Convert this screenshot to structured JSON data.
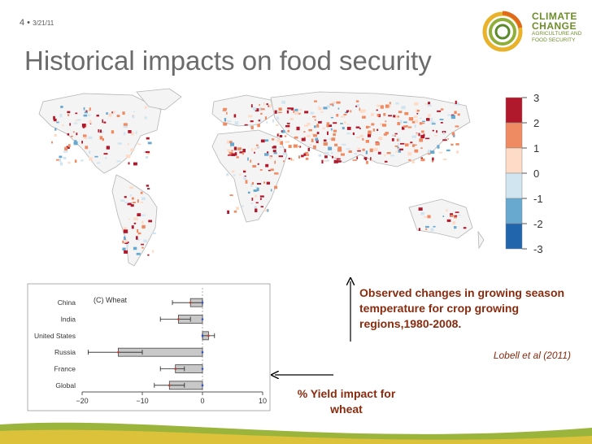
{
  "slide": {
    "number": "4",
    "date": "3/21/11",
    "title": "Historical impacts on food security"
  },
  "logo": {
    "line1": "CLIMATE",
    "line2": "CHANGE",
    "line3": "AGRICULTURE AND",
    "line4": "FOOD SECURITY",
    "color": "#6d8e2a"
  },
  "annotations": {
    "temperature": "Observed changes in growing season temperature for crop growing regions,1980-2008.",
    "citation": "Lobell et al (2011)",
    "yield": "% Yield impact for wheat"
  },
  "chart_data": [
    {
      "type": "heatmap",
      "description_colors": [
        "#2166ac",
        "#67a9cf",
        "#d1e5f0",
        "#fddbc7",
        "#ef8a62",
        "#b2182b"
      ],
      "legend": {
        "ticks": [
          "3",
          "2",
          "1",
          "0",
          "-1",
          "-2",
          "-3"
        ],
        "colors": [
          "#b2182b",
          "#ef8a62",
          "#fddbc7",
          "#d1e5f0",
          "#67a9cf",
          "#2166ac"
        ]
      }
    },
    {
      "type": "bar",
      "title": "(C) Wheat",
      "orientation": "horizontal",
      "categories": [
        "China",
        "India",
        "United States",
        "Russia",
        "France",
        "Global"
      ],
      "values": [
        -2,
        -4,
        1,
        -14,
        -4.5,
        -5.5
      ],
      "error_low": [
        -5,
        -7,
        0,
        -19,
        -7,
        -8
      ],
      "error_high": [
        0,
        -2,
        2,
        -10,
        -3,
        -3
      ],
      "xlim": [
        -20,
        10
      ],
      "xticks": [
        "-20",
        "-10",
        "0",
        "10"
      ],
      "bar_color": "#c8c8c8"
    }
  ]
}
